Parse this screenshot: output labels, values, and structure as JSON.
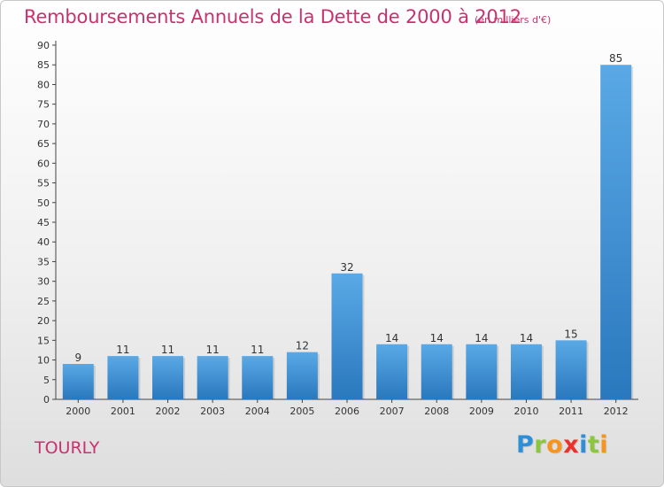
{
  "header": {
    "title": "Remboursements Annuels de la Dette de 2000 à 2012",
    "unit_note": "(en milliers d'€)"
  },
  "footer": {
    "commune": "TOURLY",
    "logo_letters": [
      {
        "char": "P",
        "color": "#2f8fd6"
      },
      {
        "char": "r",
        "color": "#8cc63f"
      },
      {
        "char": "o",
        "color": "#f7941d"
      },
      {
        "char": "x",
        "color": "#e8322b"
      },
      {
        "char": "i",
        "color": "#2f8fd6"
      },
      {
        "char": "t",
        "color": "#8cc63f"
      },
      {
        "char": "i",
        "color": "#f7941d"
      }
    ]
  },
  "colors": {
    "title": "#c8326e",
    "bar_top": "#5aa9e6",
    "bar_bottom": "#2a78bd"
  },
  "chart_data": {
    "type": "bar",
    "title": "Remboursements Annuels de la Dette de 2000 à 2012",
    "xlabel": "",
    "ylabel": "",
    "categories": [
      "2000",
      "2001",
      "2002",
      "2003",
      "2004",
      "2005",
      "2006",
      "2007",
      "2008",
      "2009",
      "2010",
      "2011",
      "2012"
    ],
    "values": [
      9,
      11,
      11,
      11,
      11,
      12,
      32,
      14,
      14,
      14,
      14,
      15,
      85
    ],
    "ylim": [
      0,
      90
    ],
    "yticks": [
      0,
      5,
      10,
      15,
      20,
      25,
      30,
      35,
      40,
      45,
      50,
      55,
      60,
      65,
      70,
      75,
      80,
      85,
      90
    ],
    "grid": false,
    "legend": "none"
  }
}
